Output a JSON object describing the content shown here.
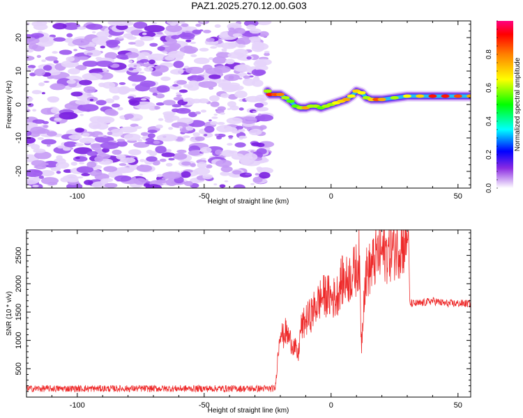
{
  "chart_data": [
    {
      "type": "heatmap",
      "title": "PAZ1.2025.270.12.00.G03",
      "xlabel": "Height of straight line (km)",
      "ylabel": "Frequency (Hz)",
      "xlim": [
        -120,
        55
      ],
      "ylim": [
        -25,
        25
      ],
      "x_ticks": [
        -100,
        -50,
        0,
        50
      ],
      "y_ticks": [
        -20,
        -10,
        0,
        10,
        20
      ],
      "noise_region_x": [
        -120,
        -25
      ],
      "ridge": {
        "x": [
          -25,
          -24,
          -22,
          -20,
          -18,
          -16,
          -14,
          -12,
          -10,
          -8,
          -6,
          -4,
          -2,
          0,
          2,
          4,
          6,
          8,
          10,
          12,
          14,
          16,
          18,
          20,
          25,
          30,
          35,
          40,
          45,
          50,
          55
        ],
        "frequency": [
          4,
          3,
          3,
          3,
          2,
          1,
          -0.5,
          -1,
          -1,
          -0.5,
          -0.5,
          -1,
          -0.5,
          0,
          0.5,
          1,
          1.5,
          2.5,
          4,
          3.5,
          2,
          1.5,
          1.5,
          1.5,
          2,
          2.5,
          2.5,
          2.5,
          2.5,
          2.5,
          2.5
        ],
        "amplitude": [
          0.6,
          0.9,
          0.85,
          0.8,
          0.6,
          0.55,
          0.55,
          0.6,
          0.75,
          0.6,
          0.6,
          0.55,
          0.6,
          0.6,
          0.65,
          0.7,
          0.75,
          0.65,
          0.7,
          0.65,
          0.6,
          0.7,
          0.85,
          0.75,
          0.6,
          0.65,
          0.7,
          0.9,
          0.9,
          0.85,
          0.75
        ]
      },
      "colorbar": {
        "label": "Normalized spectral amplitude",
        "range": [
          0,
          1
        ],
        "ticks": [
          0.0,
          0.2,
          0.4,
          0.6,
          0.8
        ]
      }
    },
    {
      "type": "line",
      "title": "",
      "xlabel": "Height of straight line (km)",
      "ylabel": "SNR (10 * v/v)",
      "xlim": [
        -120,
        55
      ],
      "ylim": [
        0,
        2950
      ],
      "x_ticks": [
        -100,
        -50,
        0,
        50
      ],
      "y_ticks": [
        500,
        1000,
        1500,
        2000,
        2500
      ],
      "color": "#ee2a2a",
      "series": [
        {
          "name": "SNR",
          "x": [
            -120,
            -110,
            -100,
            -90,
            -80,
            -70,
            -60,
            -50,
            -40,
            -30,
            -25,
            -22,
            -21,
            -20,
            -19,
            -18,
            -16,
            -14,
            -13,
            -12,
            -10,
            -8,
            -6,
            -4,
            -2,
            0,
            2,
            4,
            6,
            8,
            10,
            11,
            12,
            13,
            14,
            16,
            18,
            20,
            22,
            24,
            26,
            28,
            30,
            30.5,
            31,
            35,
            40,
            45,
            50,
            55
          ],
          "y": [
            150,
            150,
            150,
            150,
            150,
            150,
            150,
            150,
            150,
            150,
            150,
            150,
            700,
            1250,
            1050,
            1150,
            1000,
            850,
            700,
            1200,
            1350,
            1450,
            1600,
            1750,
            1800,
            1750,
            1750,
            2050,
            2050,
            2150,
            2250,
            2450,
            900,
            1900,
            2200,
            2300,
            2500,
            2550,
            2550,
            2600,
            2650,
            2700,
            2750,
            2900,
            1650,
            1650,
            1700,
            1650,
            1650,
            1650
          ]
        }
      ]
    }
  ]
}
